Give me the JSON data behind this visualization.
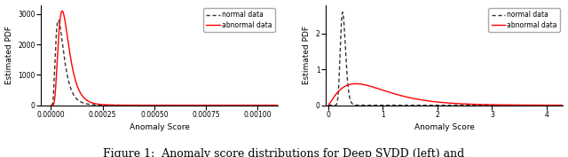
{
  "fig_width": 6.4,
  "fig_height": 1.77,
  "dpi": 100,
  "left_plot": {
    "xlabel": "Anomaly Score",
    "ylabel": "Estimated PDF",
    "xlim": [
      -5e-05,
      0.0011
    ],
    "ylim": [
      0,
      3300
    ],
    "yticks": [
      0,
      1000,
      2000,
      3000
    ],
    "xticks": [
      0.0,
      0.00025,
      0.0005,
      0.00075,
      0.001
    ],
    "normal_color": "#333333",
    "abnormal_color": "#ff0000",
    "legend_labels": [
      "normal data",
      "abnormal data"
    ]
  },
  "right_plot": {
    "xlabel": "Anomaly Score",
    "ylabel": "Estimated PDF",
    "xlim": [
      -0.05,
      4.3
    ],
    "ylim": [
      0,
      2.8
    ],
    "yticks": [
      0,
      1,
      2
    ],
    "xticks": [
      0,
      1,
      2,
      3,
      4
    ],
    "normal_color": "#333333",
    "abnormal_color": "#ff0000",
    "legend_labels": [
      "normal data",
      "abnormal data"
    ]
  },
  "caption": "Figure 1:  Anomaly score distributions for Deep SVDD (left) and",
  "caption_fontsize": 9,
  "background_color": "#ffffff"
}
